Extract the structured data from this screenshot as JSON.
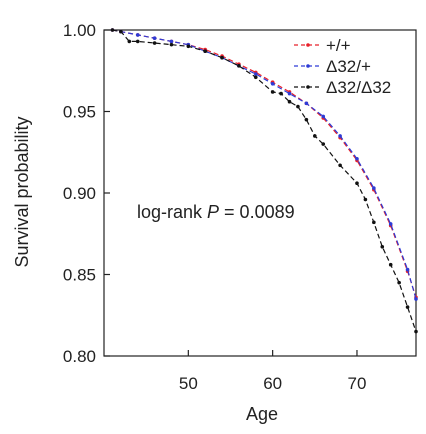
{
  "chart_data": {
    "type": "line",
    "title": "",
    "xlabel": "Age",
    "ylabel": "Survival probability",
    "xlim": [
      40,
      77
    ],
    "ylim": [
      0.8,
      1.0
    ],
    "xticks": [
      "50",
      "60",
      "70"
    ],
    "xtick_values": [
      50,
      60,
      70
    ],
    "yticks": [
      "0.80",
      "0.85",
      "0.90",
      "0.95",
      "1.00"
    ],
    "ytick_values": [
      0.8,
      0.85,
      0.9,
      0.95,
      1.0
    ],
    "grid": false,
    "legend_position": "top-right",
    "annotation": {
      "prefix": "log-rank ",
      "italic": "P",
      "suffix": " = 0.0089"
    },
    "series": [
      {
        "name": "+/+",
        "color": "#e8202a",
        "dash": "dashed",
        "x": [
          41,
          42,
          44,
          46,
          48,
          50,
          52,
          54,
          56,
          58,
          60,
          62,
          64,
          66,
          68,
          70,
          72,
          74,
          76,
          77
        ],
        "y": [
          1.0,
          0.999,
          0.997,
          0.995,
          0.993,
          0.991,
          0.988,
          0.984,
          0.979,
          0.974,
          0.968,
          0.962,
          0.955,
          0.946,
          0.934,
          0.92,
          0.902,
          0.88,
          0.852,
          0.836
        ]
      },
      {
        "name": "Δ32/+",
        "color": "#2d3bd6",
        "dash": "dashed",
        "x": [
          41,
          42,
          44,
          46,
          48,
          50,
          52,
          54,
          56,
          58,
          60,
          62,
          64,
          66,
          68,
          70,
          72,
          74,
          76,
          77
        ],
        "y": [
          1.0,
          0.999,
          0.997,
          0.995,
          0.993,
          0.991,
          0.987,
          0.983,
          0.978,
          0.973,
          0.967,
          0.961,
          0.955,
          0.947,
          0.935,
          0.921,
          0.903,
          0.881,
          0.853,
          0.835
        ]
      },
      {
        "name": "Δ32/Δ32",
        "color": "#111111",
        "dash": "dashed",
        "x": [
          41,
          42,
          43,
          44,
          46,
          48,
          50,
          52,
          54,
          56,
          58,
          60,
          61,
          62,
          63,
          64,
          65,
          66,
          68,
          70,
          71,
          72,
          73,
          74,
          75,
          76,
          77
        ],
        "y": [
          1.0,
          0.999,
          0.993,
          0.993,
          0.992,
          0.991,
          0.99,
          0.987,
          0.983,
          0.978,
          0.971,
          0.962,
          0.961,
          0.956,
          0.953,
          0.945,
          0.935,
          0.93,
          0.917,
          0.906,
          0.896,
          0.882,
          0.867,
          0.856,
          0.845,
          0.83,
          0.815
        ]
      }
    ]
  }
}
